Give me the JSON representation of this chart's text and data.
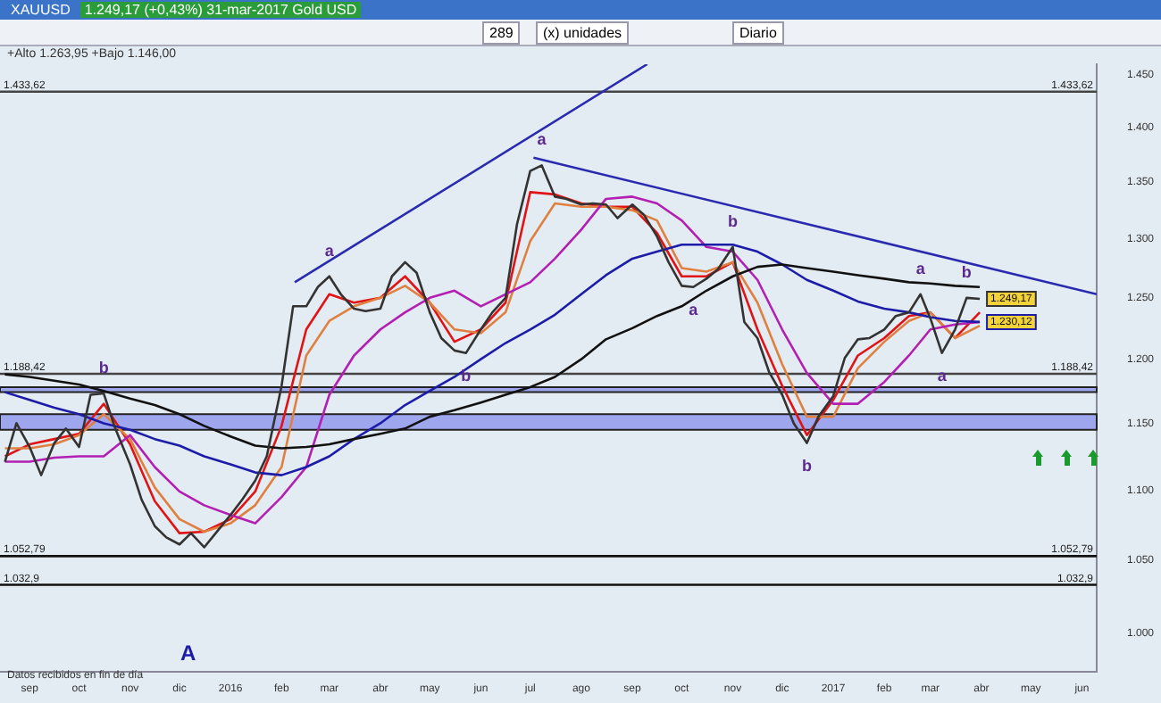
{
  "chart_data": {
    "type": "line",
    "title": "XAUUSD",
    "subtitle": "1.249,17 (+0,43%)  31-mar-2017  Gold USD",
    "log": "y",
    "grid": false,
    "legend": false,
    "marker": "none",
    "line_style": "solid",
    "xlim": [
      "2015-08-14",
      "2017-06-10"
    ],
    "xticks": [
      {
        "value": "2015-09-01",
        "label": "sep"
      },
      {
        "value": "2015-10-01",
        "label": "oct"
      },
      {
        "value": "2015-11-01",
        "label": "nov"
      },
      {
        "value": "2015-12-01",
        "label": "dic"
      },
      {
        "value": "2016-01-01",
        "label": "2016"
      },
      {
        "value": "2016-02-01",
        "label": "feb"
      },
      {
        "value": "2016-03-01",
        "label": "mar"
      },
      {
        "value": "2016-04-01",
        "label": "abr"
      },
      {
        "value": "2016-05-01",
        "label": "may"
      },
      {
        "value": "2016-06-01",
        "label": "jun"
      },
      {
        "value": "2016-07-01",
        "label": "jul"
      },
      {
        "value": "2016-08-01",
        "label": "ago"
      },
      {
        "value": "2016-09-01",
        "label": "sep"
      },
      {
        "value": "2016-10-01",
        "label": "oct"
      },
      {
        "value": "2016-11-01",
        "label": "nov"
      },
      {
        "value": "2016-12-01",
        "label": "dic"
      },
      {
        "value": "2017-01-01",
        "label": "2017"
      },
      {
        "value": "2017-02-01",
        "label": "feb"
      },
      {
        "value": "2017-03-01",
        "label": "mar"
      },
      {
        "value": "2017-04-01",
        "label": "abr"
      },
      {
        "value": "2017-05-01",
        "label": "may"
      },
      {
        "value": "2017-06-01",
        "label": "jun"
      }
    ],
    "ylim": [
      975,
      1460
    ],
    "yticks": [
      {
        "value": 1000,
        "label": "1.000"
      },
      {
        "value": 1050,
        "label": "1.050"
      },
      {
        "value": 1100,
        "label": "1.100"
      },
      {
        "value": 1150,
        "label": "1.150"
      },
      {
        "value": 1200,
        "label": "1.200"
      },
      {
        "value": 1250,
        "label": "1.250"
      },
      {
        "value": 1300,
        "label": "1.300"
      },
      {
        "value": 1350,
        "label": "1.350"
      },
      {
        "value": 1400,
        "label": "1.400"
      },
      {
        "value": 1450,
        "label": "1.450"
      }
    ],
    "series": [
      {
        "color": "#333333",
        "x": [
          "2015-08-17",
          "2015-08-24",
          "2015-09-01",
          "2015-09-08",
          "2015-09-16",
          "2015-09-23",
          "2015-10-01",
          "2015-10-08",
          "2015-10-16",
          "2015-10-23",
          "2015-11-01",
          "2015-11-08",
          "2015-11-16",
          "2015-11-23",
          "2015-12-01",
          "2015-12-08",
          "2015-12-16",
          "2015-12-23",
          "2016-01-01",
          "2016-01-08",
          "2016-01-16",
          "2016-01-23",
          "2016-02-01",
          "2016-02-08",
          "2016-02-16",
          "2016-02-23",
          "2016-03-01",
          "2016-03-08",
          "2016-03-16",
          "2016-03-23",
          "2016-04-01",
          "2016-04-08",
          "2016-04-16",
          "2016-04-23",
          "2016-05-01",
          "2016-05-08",
          "2016-05-16",
          "2016-05-23",
          "2016-06-01",
          "2016-06-08",
          "2016-06-16",
          "2016-06-23",
          "2016-07-01",
          "2016-07-08",
          "2016-07-16",
          "2016-07-23",
          "2016-08-01",
          "2016-08-08",
          "2016-08-16",
          "2016-08-23",
          "2016-09-01",
          "2016-09-08",
          "2016-09-16",
          "2016-09-23",
          "2016-10-01",
          "2016-10-08",
          "2016-10-16",
          "2016-10-23",
          "2016-11-01",
          "2016-11-08",
          "2016-11-16",
          "2016-11-23",
          "2016-12-01",
          "2016-12-08",
          "2016-12-16",
          "2016-12-23",
          "2017-01-01",
          "2017-01-08",
          "2017-01-16",
          "2017-01-23",
          "2017-02-01",
          "2017-02-08",
          "2017-02-16",
          "2017-02-23",
          "2017-03-01",
          "2017-03-08",
          "2017-03-16",
          "2017-03-23",
          "2017-03-31"
        ],
        "values": [
          1121,
          1150,
          1132,
          1111,
          1135,
          1146,
          1132,
          1172,
          1173,
          1146,
          1119,
          1093,
          1074,
          1066,
          1061,
          1069,
          1059,
          1069,
          1082,
          1093,
          1107,
          1125,
          1179,
          1243,
          1243,
          1259,
          1268,
          1253,
          1241,
          1239,
          1241,
          1268,
          1280,
          1271,
          1238,
          1217,
          1207,
          1205,
          1224,
          1238,
          1250,
          1313,
          1360,
          1365,
          1337,
          1335,
          1330,
          1331,
          1330,
          1318,
          1330,
          1321,
          1302,
          1280,
          1260,
          1259,
          1266,
          1274,
          1293,
          1230,
          1217,
          1190,
          1172,
          1150,
          1135,
          1155,
          1171,
          1201,
          1216,
          1217,
          1224,
          1235,
          1238,
          1253,
          1233,
          1205,
          1224,
          1250,
          1249.17
        ],
        "value_labels": [
          null,
          null,
          null,
          null,
          null,
          null,
          null,
          null,
          null,
          null,
          null,
          null,
          null,
          null,
          null,
          null,
          null,
          null,
          null,
          null,
          null,
          null,
          null,
          null,
          null,
          null,
          null,
          null,
          null,
          null,
          null,
          null,
          null,
          null,
          null,
          null,
          null,
          null,
          null,
          null,
          null,
          null,
          null,
          null,
          null,
          null,
          null,
          null,
          null,
          null,
          null,
          null,
          null,
          null,
          null,
          null,
          null,
          null,
          null,
          null,
          null,
          null,
          null,
          null,
          null,
          null,
          null,
          null,
          null,
          null,
          null,
          null,
          null,
          null,
          null,
          null,
          null,
          null,
          "1.249,17"
        ]
      },
      {
        "color": "#111111",
        "x": [
          "2015-08-17",
          "2015-09-01",
          "2015-09-16",
          "2015-10-01",
          "2015-10-16",
          "2015-11-01",
          "2015-11-16",
          "2015-12-01",
          "2015-12-16",
          "2016-01-01",
          "2016-01-16",
          "2016-02-01",
          "2016-02-16",
          "2016-03-01",
          "2016-03-16",
          "2016-04-01",
          "2016-04-16",
          "2016-05-01",
          "2016-05-16",
          "2016-06-01",
          "2016-06-16",
          "2016-07-01",
          "2016-07-16",
          "2016-08-01",
          "2016-08-16",
          "2016-09-01",
          "2016-09-16",
          "2016-10-01",
          "2016-10-16",
          "2016-11-01",
          "2016-11-16",
          "2016-12-01",
          "2016-12-16",
          "2017-01-01",
          "2017-01-16",
          "2017-02-01",
          "2017-02-16",
          "2017-03-01",
          "2017-03-16",
          "2017-03-31"
        ],
        "values": [
          1188,
          1186,
          1183,
          1180,
          1175,
          1169,
          1164,
          1157,
          1148,
          1140,
          1133,
          1131,
          1132,
          1134,
          1138,
          1142,
          1146,
          1155,
          1160,
          1166,
          1172,
          1178,
          1186,
          1200,
          1216,
          1225,
          1235,
          1243,
          1256,
          1268,
          1276,
          1278,
          1275,
          1272,
          1269,
          1266,
          1263,
          1262,
          1260,
          1259
        ]
      },
      {
        "color": "#1c1ca8",
        "x": [
          "2015-08-17",
          "2015-09-01",
          "2015-09-16",
          "2015-10-01",
          "2015-10-16",
          "2015-11-01",
          "2015-11-16",
          "2015-12-01",
          "2015-12-16",
          "2016-01-01",
          "2016-01-16",
          "2016-02-01",
          "2016-02-16",
          "2016-03-01",
          "2016-03-16",
          "2016-04-01",
          "2016-04-16",
          "2016-05-01",
          "2016-05-16",
          "2016-06-01",
          "2016-06-16",
          "2016-07-01",
          "2016-07-16",
          "2016-08-01",
          "2016-08-16",
          "2016-09-01",
          "2016-09-16",
          "2016-10-01",
          "2016-10-16",
          "2016-11-01",
          "2016-11-16",
          "2016-12-01",
          "2016-12-16",
          "2017-01-01",
          "2017-01-16",
          "2017-02-01",
          "2017-02-16",
          "2017-03-01",
          "2017-03-16",
          "2017-03-31"
        ],
        "values": [
          1174,
          1168,
          1162,
          1157,
          1150,
          1145,
          1138,
          1133,
          1125,
          1119,
          1113,
          1111,
          1117,
          1125,
          1138,
          1150,
          1164,
          1175,
          1186,
          1200,
          1213,
          1224,
          1236,
          1253,
          1269,
          1283,
          1289,
          1295,
          1295,
          1295,
          1289,
          1278,
          1265,
          1256,
          1247,
          1241,
          1238,
          1234,
          1231,
          1230.12
        ],
        "value_labels": [
          null,
          null,
          null,
          null,
          null,
          null,
          null,
          null,
          null,
          null,
          null,
          null,
          null,
          null,
          null,
          null,
          null,
          null,
          null,
          null,
          null,
          null,
          null,
          null,
          null,
          null,
          null,
          null,
          null,
          null,
          null,
          null,
          null,
          null,
          null,
          null,
          null,
          null,
          null,
          "1.230,12"
        ]
      },
      {
        "color": "#b21fb2",
        "x": [
          "2015-08-17",
          "2015-09-01",
          "2015-09-16",
          "2015-10-01",
          "2015-10-16",
          "2015-11-01",
          "2015-11-16",
          "2015-12-01",
          "2015-12-16",
          "2016-01-01",
          "2016-01-16",
          "2016-02-01",
          "2016-02-16",
          "2016-03-01",
          "2016-03-16",
          "2016-04-01",
          "2016-04-16",
          "2016-05-01",
          "2016-05-16",
          "2016-06-01",
          "2016-06-16",
          "2016-07-01",
          "2016-07-16",
          "2016-08-01",
          "2016-08-16",
          "2016-09-01",
          "2016-09-16",
          "2016-10-01",
          "2016-10-16",
          "2016-11-01",
          "2016-11-16",
          "2016-12-01",
          "2016-12-16",
          "2017-01-01",
          "2017-01-16",
          "2017-02-01",
          "2017-02-16",
          "2017-03-01",
          "2017-03-16",
          "2017-03-31"
        ],
        "values": [
          1121,
          1121,
          1124,
          1125,
          1125,
          1141,
          1117,
          1099,
          1089,
          1082,
          1076,
          1095,
          1117,
          1172,
          1203,
          1224,
          1238,
          1250,
          1256,
          1243,
          1253,
          1263,
          1283,
          1308,
          1335,
          1337,
          1331,
          1316,
          1293,
          1289,
          1265,
          1224,
          1189,
          1165,
          1165,
          1182,
          1203,
          1224,
          1228,
          1230
        ]
      },
      {
        "color": "#e08040",
        "x": [
          "2015-08-17",
          "2015-09-01",
          "2015-09-16",
          "2015-10-01",
          "2015-10-16",
          "2015-11-01",
          "2015-11-16",
          "2015-12-01",
          "2015-12-16",
          "2016-01-01",
          "2016-01-16",
          "2016-02-01",
          "2016-02-16",
          "2016-03-01",
          "2016-03-16",
          "2016-04-01",
          "2016-04-16",
          "2016-05-01",
          "2016-05-16",
          "2016-06-01",
          "2016-06-16",
          "2016-07-01",
          "2016-07-16",
          "2016-08-01",
          "2016-08-16",
          "2016-09-01",
          "2016-09-16",
          "2016-10-01",
          "2016-10-16",
          "2016-11-01",
          "2016-11-16",
          "2016-12-01",
          "2016-12-16",
          "2017-01-01",
          "2017-01-16",
          "2017-02-01",
          "2017-02-16",
          "2017-03-01",
          "2017-03-16",
          "2017-03-31"
        ],
        "values": [
          1131,
          1131,
          1134,
          1141,
          1157,
          1138,
          1102,
          1079,
          1070,
          1076,
          1089,
          1117,
          1203,
          1231,
          1243,
          1250,
          1260,
          1246,
          1224,
          1221,
          1238,
          1298,
          1331,
          1328,
          1328,
          1325,
          1316,
          1275,
          1272,
          1280,
          1246,
          1196,
          1155,
          1155,
          1193,
          1214,
          1231,
          1238,
          1217,
          1227
        ]
      },
      {
        "color": "#e01414",
        "x": [
          "2015-08-17",
          "2015-09-01",
          "2015-09-16",
          "2015-10-01",
          "2015-10-16",
          "2015-11-01",
          "2015-11-16",
          "2015-12-01",
          "2015-12-16",
          "2016-01-01",
          "2016-01-16",
          "2016-02-01",
          "2016-02-16",
          "2016-03-01",
          "2016-03-16",
          "2016-04-01",
          "2016-04-16",
          "2016-05-01",
          "2016-05-16",
          "2016-06-01",
          "2016-06-16",
          "2016-07-01",
          "2016-07-16",
          "2016-08-01",
          "2016-08-16",
          "2016-09-01",
          "2016-09-16",
          "2016-10-01",
          "2016-10-16",
          "2016-11-01",
          "2016-11-16",
          "2016-12-01",
          "2016-12-16",
          "2017-01-01",
          "2017-01-16",
          "2017-02-01",
          "2017-02-16",
          "2017-03-01",
          "2017-03-16",
          "2017-03-31"
        ],
        "values": [
          1125,
          1134,
          1138,
          1142,
          1165,
          1134,
          1092,
          1069,
          1070,
          1079,
          1099,
          1148,
          1224,
          1253,
          1246,
          1250,
          1268,
          1246,
          1214,
          1224,
          1246,
          1341,
          1339,
          1331,
          1328,
          1328,
          1305,
          1268,
          1268,
          1280,
          1224,
          1179,
          1141,
          1168,
          1203,
          1217,
          1235,
          1238,
          1217,
          1238
        ]
      },
      {
        "color": "#2a2ab0",
        "x": [
          "2016-02-09",
          "2016-09-10"
        ],
        "values": [
          1263,
          1460
        ]
      },
      {
        "color": "#2a2ab0",
        "x": [
          "2016-07-03",
          "2017-06-10"
        ],
        "values": [
          1372,
          1253
        ]
      }
    ],
    "ref_lines": [
      {
        "axis": "y",
        "value": 1433.62,
        "label": "1.433,62",
        "color": "#444444"
      },
      {
        "axis": "y",
        "value": 1188.42,
        "label": "1.188,42",
        "color": "#444444"
      },
      {
        "axis": "y",
        "value": 1052.79,
        "label": "1.052,79",
        "color": "#111111"
      },
      {
        "axis": "y",
        "value": 1032.9,
        "label": "1.032,9",
        "color": "#111111"
      }
    ],
    "bands": [
      {
        "axis": "y",
        "from": 1174,
        "to": 1178,
        "color": "#9ea6ee"
      },
      {
        "axis": "y",
        "from": 1145,
        "to": 1157,
        "color": "#9ea6ee"
      }
    ],
    "annotations": [
      "289",
      "(x) unidades",
      "Diario",
      "+Alto 1.263,95  +Bajo 1.146,00",
      {
        "text": "b",
        "x": "2015-10-16",
        "y": 1173
      },
      {
        "text": "a",
        "x": "2016-03-01",
        "y": 1268
      },
      {
        "text": "a",
        "x": "2016-07-08",
        "y": 1365
      },
      {
        "text": "b",
        "x": "2016-05-23",
        "y": 1205
      },
      {
        "text": "b",
        "x": "2016-11-01",
        "y": 1293
      },
      {
        "text": "a",
        "x": "2016-10-08",
        "y": 1259
      },
      {
        "text": "b",
        "x": "2016-12-16",
        "y": 1135
      },
      {
        "text": "a",
        "x": "2017-02-23",
        "y": 1253
      },
      {
        "text": "b",
        "x": "2017-03-23",
        "y": 1250
      },
      {
        "text": "a",
        "x": "2017-03-08",
        "y": 1205
      },
      "A",
      "Datos recibidos en fin de día"
    ]
  }
}
